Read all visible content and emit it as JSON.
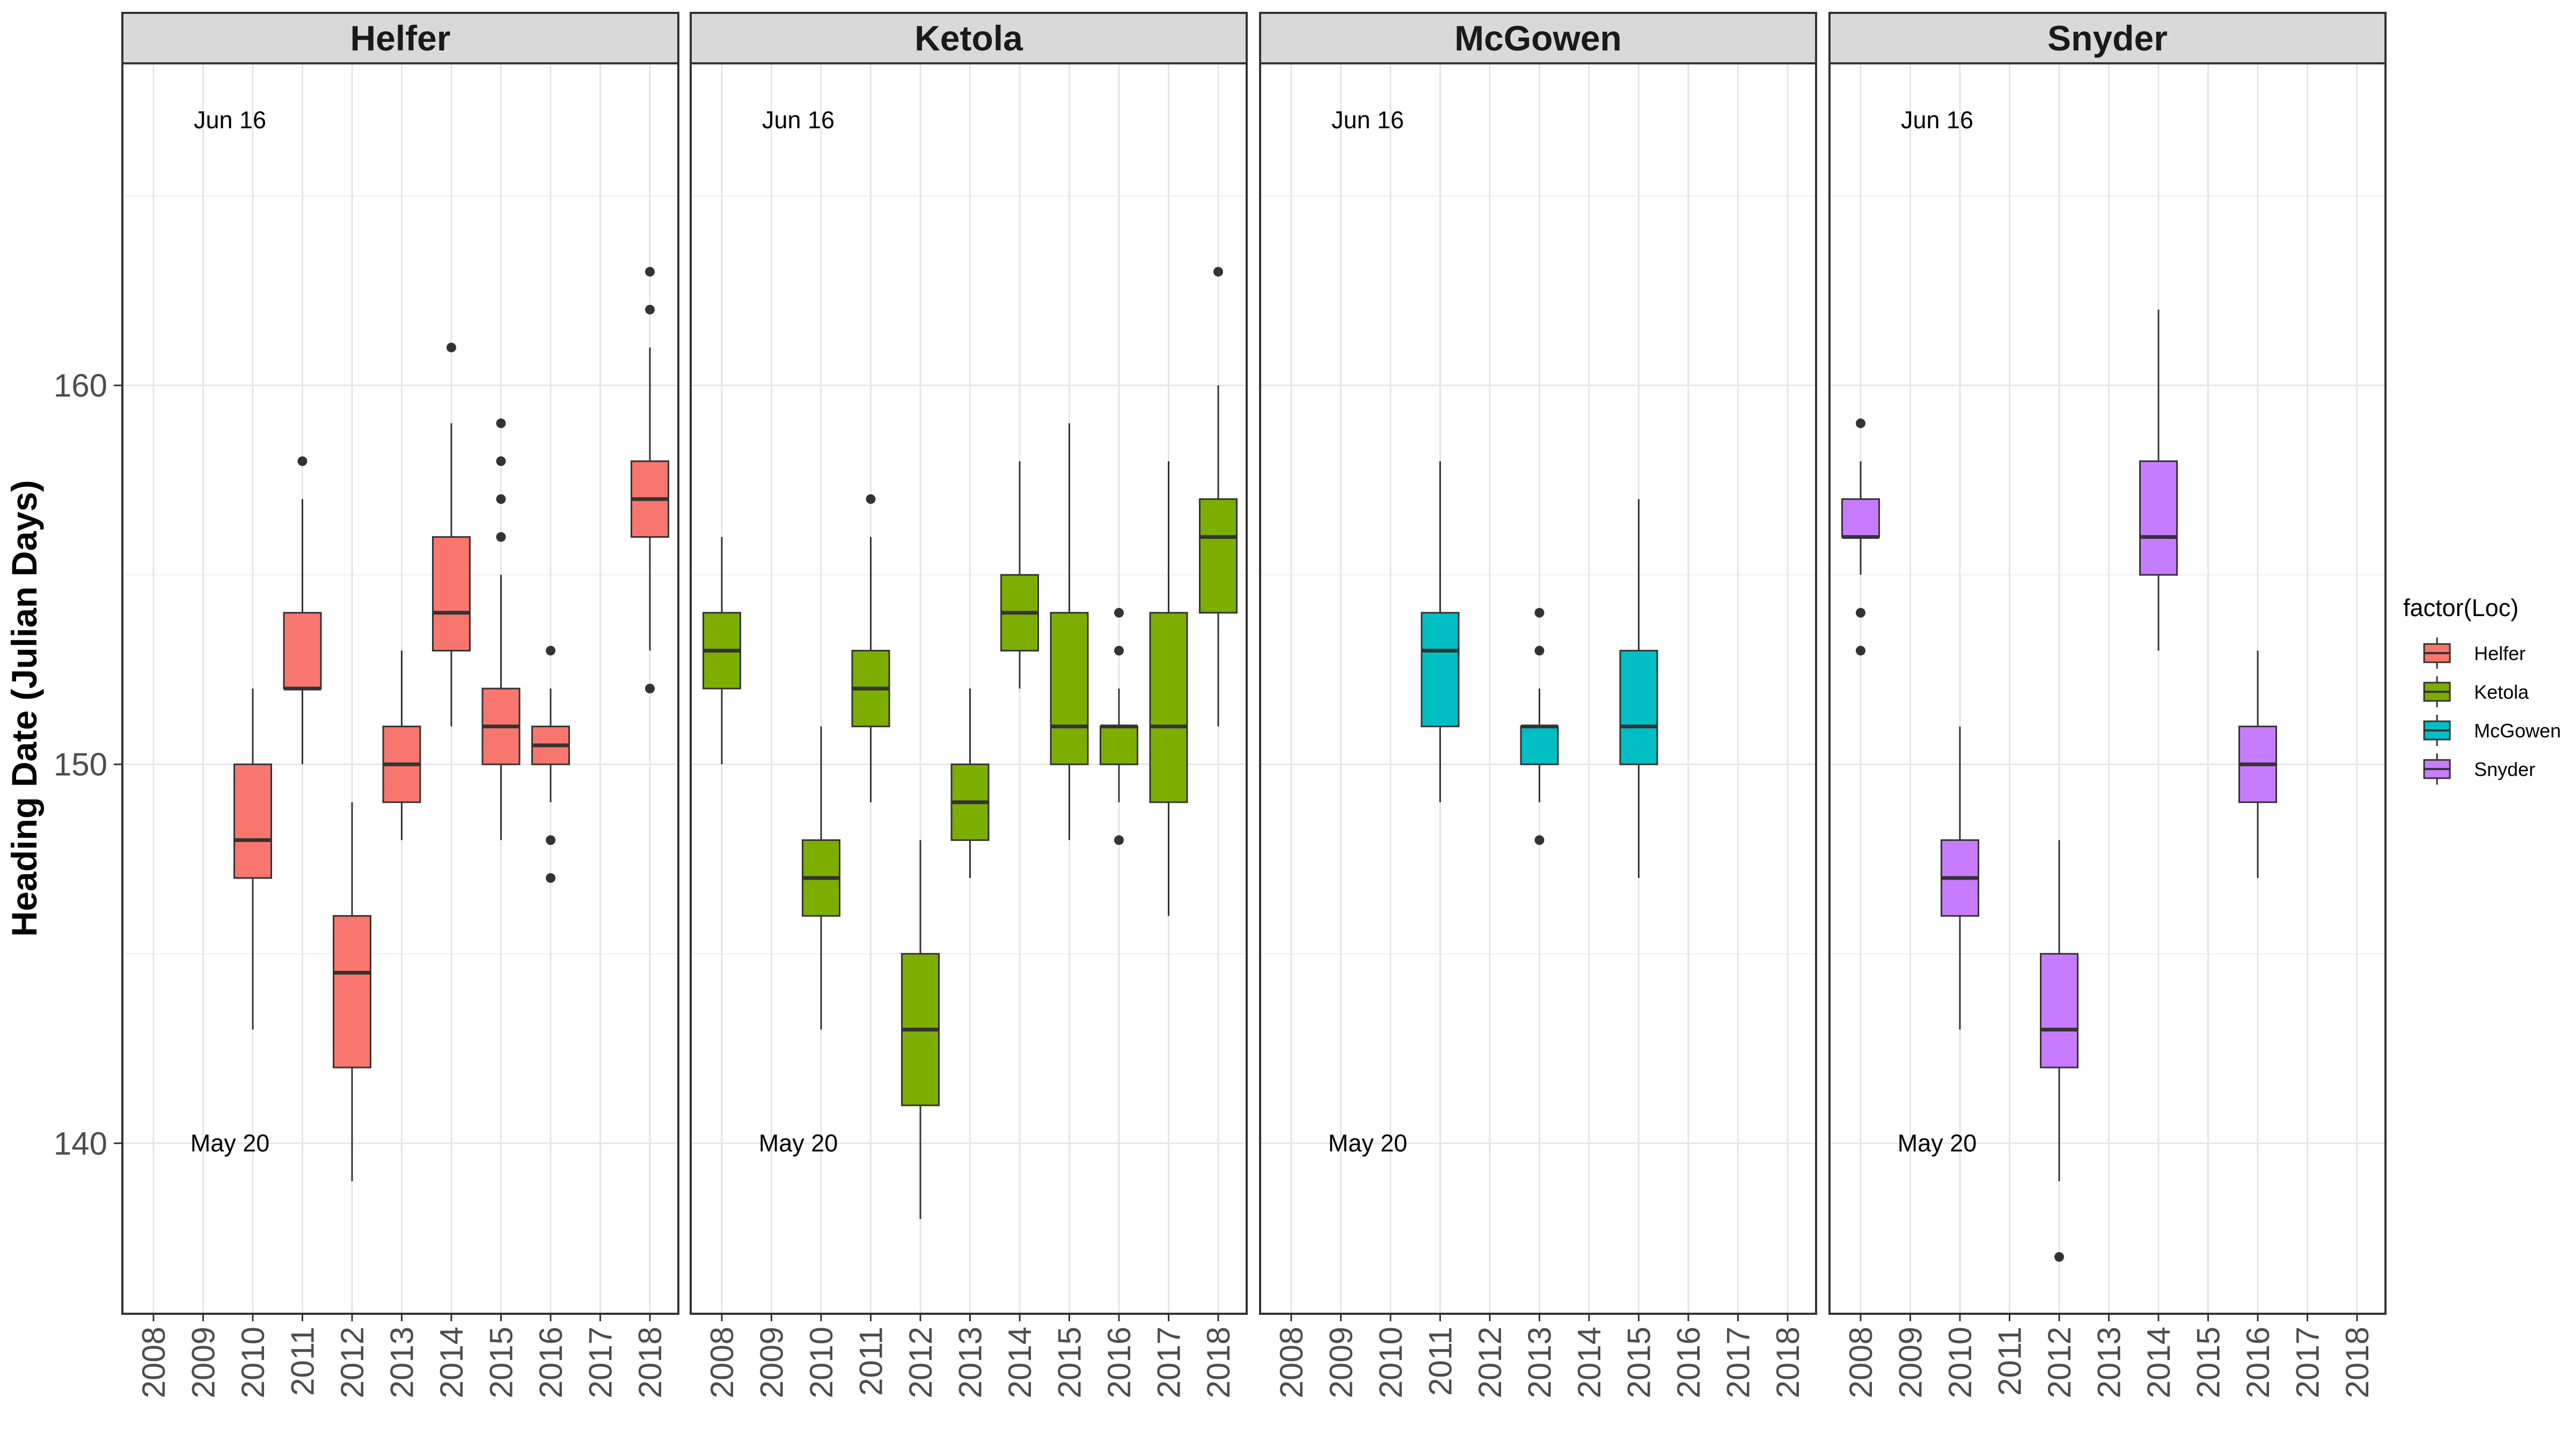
{
  "chart_data": {
    "type": "boxplot",
    "facet_by": "Loc",
    "ylabel": "Heading Date (Julian Days)",
    "xlabel": "",
    "ylim": [
      135.5,
      168.5
    ],
    "y_ticks": [
      140,
      150,
      160
    ],
    "x_categories": [
      "2008",
      "2009",
      "2010",
      "2011",
      "2012",
      "2013",
      "2014",
      "2015",
      "2016",
      "2017",
      "2018"
    ],
    "grid": true,
    "legend": {
      "title": "factor(Loc)",
      "position": "right",
      "entries": [
        {
          "label": "Helfer",
          "color": "#F8766D"
        },
        {
          "label": "Ketola",
          "color": "#7CAE00"
        },
        {
          "label": "McGowen",
          "color": "#00BFC4"
        },
        {
          "label": "Snyder",
          "color": "#C77CFF"
        }
      ]
    },
    "annotations": [
      {
        "text": "Jun 16",
        "x": "2009",
        "y": 167
      },
      {
        "text": "May 20",
        "x": "2009",
        "y": 140
      }
    ],
    "panels": [
      {
        "name": "Helfer",
        "color": "#F8766D",
        "boxes": [
          {
            "year": "2010",
            "whisker_low": 143,
            "q1": 147,
            "median": 148,
            "q3": 150,
            "whisker_high": 152,
            "outliers": []
          },
          {
            "year": "2011",
            "whisker_low": 150,
            "q1": 152,
            "median": 152,
            "q3": 154,
            "whisker_high": 157,
            "outliers": [
              158
            ]
          },
          {
            "year": "2012",
            "whisker_low": 139,
            "q1": 142,
            "median": 144.5,
            "q3": 146,
            "whisker_high": 149,
            "outliers": []
          },
          {
            "year": "2013",
            "whisker_low": 148,
            "q1": 149,
            "median": 150,
            "q3": 151,
            "whisker_high": 153,
            "outliers": []
          },
          {
            "year": "2014",
            "whisker_low": 151,
            "q1": 153,
            "median": 154,
            "q3": 156,
            "whisker_high": 159,
            "outliers": [
              161
            ]
          },
          {
            "year": "2015",
            "whisker_low": 148,
            "q1": 150,
            "median": 151,
            "q3": 152,
            "whisker_high": 155,
            "outliers": [
              156,
              157,
              158,
              159
            ]
          },
          {
            "year": "2016",
            "whisker_low": 149,
            "q1": 150,
            "median": 150.5,
            "q3": 151,
            "whisker_high": 152,
            "outliers": [
              153,
              148,
              147
            ]
          },
          {
            "year": "2018",
            "whisker_low": 153,
            "q1": 156,
            "median": 157,
            "q3": 158,
            "whisker_high": 161,
            "outliers": [
              152,
              162,
              163
            ]
          }
        ]
      },
      {
        "name": "Ketola",
        "color": "#7CAE00",
        "boxes": [
          {
            "year": "2008",
            "whisker_low": 150,
            "q1": 152,
            "median": 153,
            "q3": 154,
            "whisker_high": 156,
            "outliers": []
          },
          {
            "year": "2010",
            "whisker_low": 143,
            "q1": 146,
            "median": 147,
            "q3": 148,
            "whisker_high": 151,
            "outliers": []
          },
          {
            "year": "2011",
            "whisker_low": 149,
            "q1": 151,
            "median": 152,
            "q3": 153,
            "whisker_high": 156,
            "outliers": [
              157
            ]
          },
          {
            "year": "2012",
            "whisker_low": 138,
            "q1": 141,
            "median": 143,
            "q3": 145,
            "whisker_high": 148,
            "outliers": []
          },
          {
            "year": "2013",
            "whisker_low": 147,
            "q1": 148,
            "median": 149,
            "q3": 150,
            "whisker_high": 152,
            "outliers": []
          },
          {
            "year": "2014",
            "whisker_low": 152,
            "q1": 153,
            "median": 154,
            "q3": 155,
            "whisker_high": 158,
            "outliers": []
          },
          {
            "year": "2015",
            "whisker_low": 148,
            "q1": 150,
            "median": 151,
            "q3": 154,
            "whisker_high": 159,
            "outliers": []
          },
          {
            "year": "2016",
            "whisker_low": 149,
            "q1": 150,
            "median": 151,
            "q3": 151,
            "whisker_high": 152,
            "outliers": [
              153,
              154,
              148
            ]
          },
          {
            "year": "2017",
            "whisker_low": 146,
            "q1": 149,
            "median": 151,
            "q3": 154,
            "whisker_high": 158,
            "outliers": []
          },
          {
            "year": "2018",
            "whisker_low": 151,
            "q1": 154,
            "median": 156,
            "q3": 157,
            "whisker_high": 160,
            "outliers": [
              163
            ]
          }
        ]
      },
      {
        "name": "McGowen",
        "color": "#00BFC4",
        "boxes": [
          {
            "year": "2011",
            "whisker_low": 149,
            "q1": 151,
            "median": 153,
            "q3": 154,
            "whisker_high": 158,
            "outliers": []
          },
          {
            "year": "2013",
            "whisker_low": 149,
            "q1": 150,
            "median": 151,
            "q3": 151,
            "whisker_high": 152,
            "outliers": [
              153,
              154,
              148
            ]
          },
          {
            "year": "2015",
            "whisker_low": 147,
            "q1": 150,
            "median": 151,
            "q3": 153,
            "whisker_high": 157,
            "outliers": []
          }
        ]
      },
      {
        "name": "Snyder",
        "color": "#C77CFF",
        "boxes": [
          {
            "year": "2008",
            "whisker_low": 155,
            "q1": 156,
            "median": 156,
            "q3": 157,
            "whisker_high": 158,
            "outliers": [
              159,
              154,
              153
            ]
          },
          {
            "year": "2010",
            "whisker_low": 143,
            "q1": 146,
            "median": 147,
            "q3": 148,
            "whisker_high": 151,
            "outliers": []
          },
          {
            "year": "2012",
            "whisker_low": 139,
            "q1": 142,
            "median": 143,
            "q3": 145,
            "whisker_high": 148,
            "outliers": [
              137
            ]
          },
          {
            "year": "2014",
            "whisker_low": 153,
            "q1": 155,
            "median": 156,
            "q3": 158,
            "whisker_high": 162,
            "outliers": []
          },
          {
            "year": "2016",
            "whisker_low": 147,
            "q1": 149,
            "median": 150,
            "q3": 151,
            "whisker_high": 153,
            "outliers": []
          }
        ]
      }
    ]
  }
}
